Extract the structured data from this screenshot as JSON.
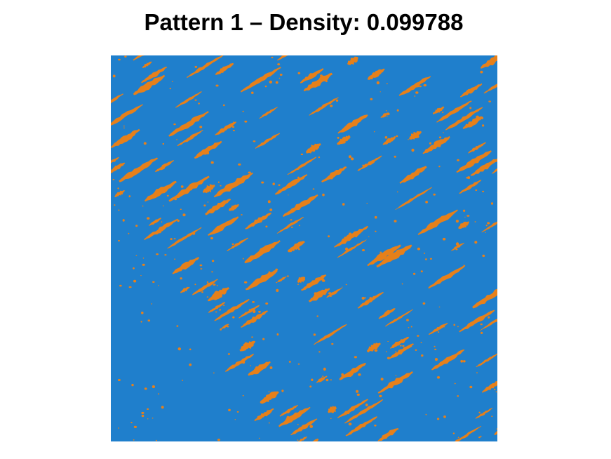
{
  "figure": {
    "title": "Pattern 1 – Density: 0.099788"
  },
  "pattern": {
    "index": 1,
    "density": 0.099788,
    "colors": {
      "background": "#1f7fcc",
      "foreground": "#e6801a"
    }
  }
}
